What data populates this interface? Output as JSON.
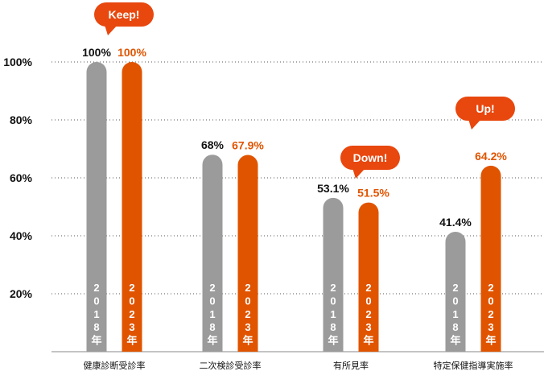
{
  "chart_data": {
    "type": "bar",
    "categories": [
      "健康診断受診率",
      "二次検診受診率",
      "有所見率",
      "特定保健指導実施率"
    ],
    "series": [
      {
        "name": "2018年",
        "values": [
          100,
          68,
          53.1,
          41.4
        ],
        "labels": [
          "100%",
          "68%",
          "53.1%",
          "41.4%"
        ],
        "color": "#9b9b9b",
        "label_color": "#111111"
      },
      {
        "name": "2023年",
        "values": [
          100,
          67.9,
          51.5,
          64.2
        ],
        "labels": [
          "100%",
          "67.9%",
          "51.5%",
          "64.2%"
        ],
        "color": "#e05400",
        "label_color": "#e05400"
      }
    ],
    "yticks": [
      "20%",
      "40%",
      "60%",
      "80%",
      "100%"
    ],
    "ytick_values": [
      20,
      40,
      60,
      80,
      100
    ],
    "ylim": [
      0,
      100
    ],
    "grid": true,
    "callouts": [
      {
        "text": "Keep!",
        "category": 0
      },
      {
        "text": "Down!",
        "category": 2
      },
      {
        "text": "Up!",
        "category": 3
      }
    ],
    "callout_color": "#e8470e"
  }
}
